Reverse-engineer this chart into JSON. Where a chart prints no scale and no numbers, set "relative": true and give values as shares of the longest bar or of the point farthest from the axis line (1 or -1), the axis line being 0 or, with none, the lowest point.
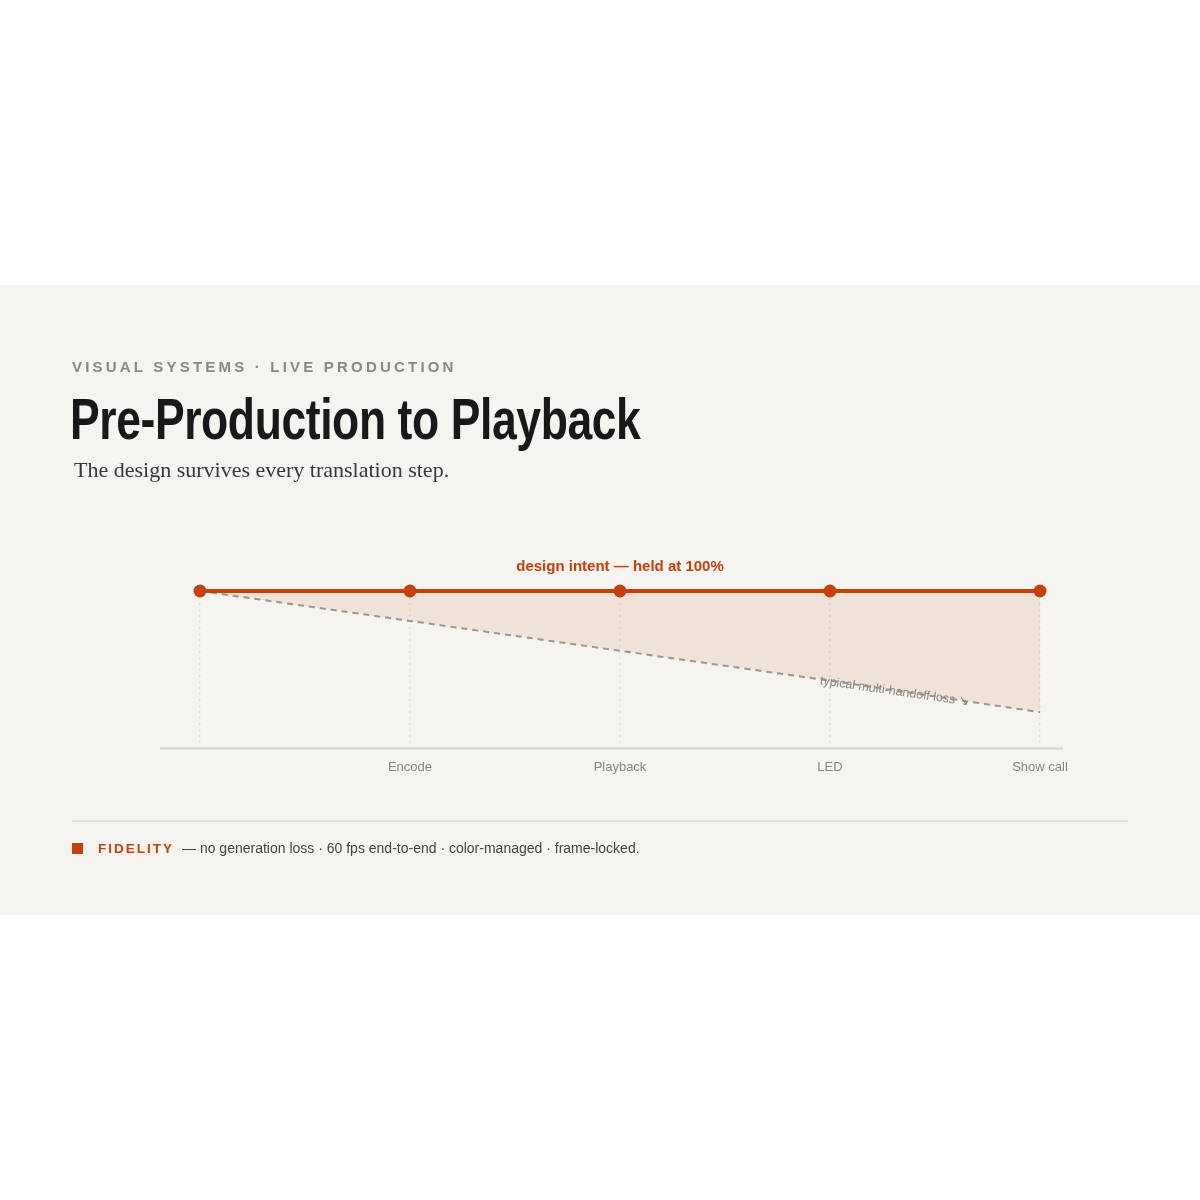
{
  "chart_data": {
    "type": "line",
    "title": "Pre-Production to Playback",
    "subtitle": "The design survives every translation step.",
    "categories": [
      null,
      "Encode",
      "Playback",
      "LED",
      "Show call"
    ],
    "relative": true,
    "series": [
      {
        "name": "FIDELITY",
        "color": "#c4410e",
        "values": [
          1,
          1,
          1,
          1,
          1
        ],
        "lower": [
          1,
          0.81,
          0.62,
          0.43,
          0.23
        ],
        "upper": [
          1,
          1,
          1,
          1,
          1
        ],
        "marker": "circle",
        "line_style": "solid"
      },
      {
        "color": "#9b958e",
        "values": [
          1,
          0.81,
          0.62,
          0.43,
          0.23
        ],
        "marker": "none",
        "line_style": "dashed"
      }
    ],
    "grid": "x",
    "legend": "bottom left",
    "annotations": [
      "VISUAL SYSTEMS · LIVE PRODUCTION",
      {
        "text": "design intent — held at 100%",
        "x": "Playback",
        "y": 1
      },
      {
        "text": "typical multi-handoff loss ↘",
        "x": "LED",
        "y": 0.43
      },
      "— no generation loss · 60 fps end-to-end · color-managed · frame-locked."
    ]
  }
}
